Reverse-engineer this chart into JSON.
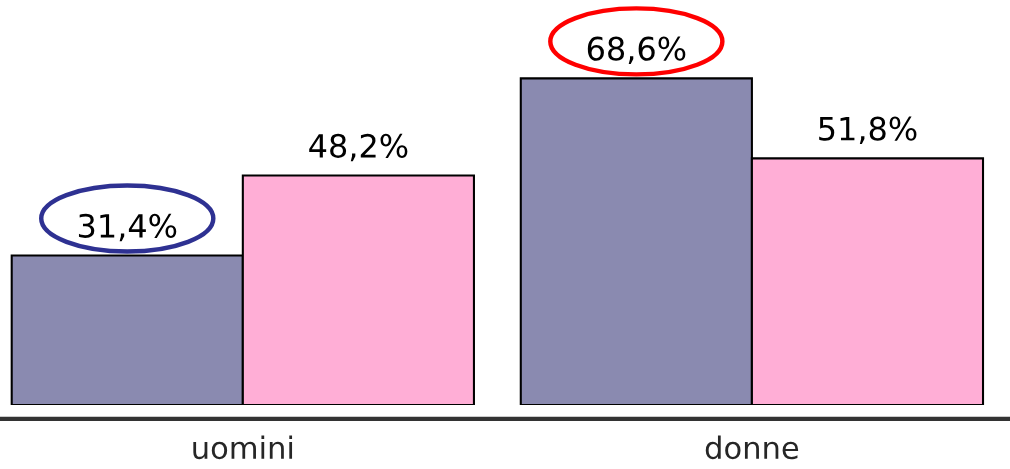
{
  "chart_data": {
    "type": "bar",
    "categories": [
      "uomini",
      "donne"
    ],
    "series": [
      {
        "color": "#8a8ab0",
        "values": [
          31.4,
          68.6
        ],
        "value_labels": [
          "31,4%",
          "68,6%"
        ]
      },
      {
        "color": "#ffaed6",
        "values": [
          48.2,
          51.8
        ],
        "value_labels": [
          "48,2%",
          "51,8%"
        ]
      }
    ],
    "tick_labels": "x"
  }
}
